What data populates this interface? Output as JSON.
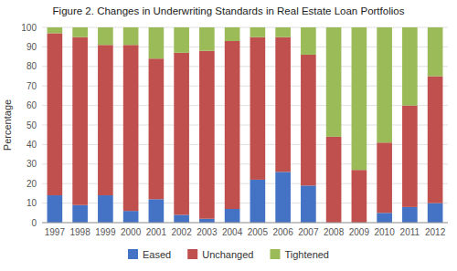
{
  "chart_data": {
    "type": "bar",
    "stacked": true,
    "title": "Figure 2. Changes in Underwriting Standards in Real Estate Loan Portfolios",
    "ylabel": "Percentage",
    "categories": [
      "1997",
      "1998",
      "1999",
      "2000",
      "2001",
      "2002",
      "2003",
      "2004",
      "2005",
      "2006",
      "2007",
      "2008",
      "2009",
      "2010",
      "2011",
      "2012"
    ],
    "series": [
      {
        "name": "Eased",
        "color": "#4472C4",
        "values": [
          14,
          9,
          14,
          6,
          12,
          4,
          2,
          7,
          22,
          26,
          19,
          0,
          0,
          5,
          8,
          10
        ]
      },
      {
        "name": "Unchanged",
        "color": "#C0504D",
        "values": [
          83,
          86,
          77,
          85,
          72,
          83,
          86,
          86,
          73,
          69,
          67,
          44,
          27,
          36,
          52,
          65
        ]
      },
      {
        "name": "Tightened",
        "color": "#9BBB59",
        "values": [
          3,
          5,
          9,
          9,
          16,
          13,
          12,
          7,
          5,
          5,
          14,
          56,
          73,
          59,
          40,
          25
        ]
      }
    ],
    "ylim": [
      0,
      100
    ],
    "yticks": [
      0,
      10,
      20,
      30,
      40,
      50,
      60,
      70,
      80,
      90,
      100
    ],
    "grid": true,
    "legend": "bottom"
  }
}
